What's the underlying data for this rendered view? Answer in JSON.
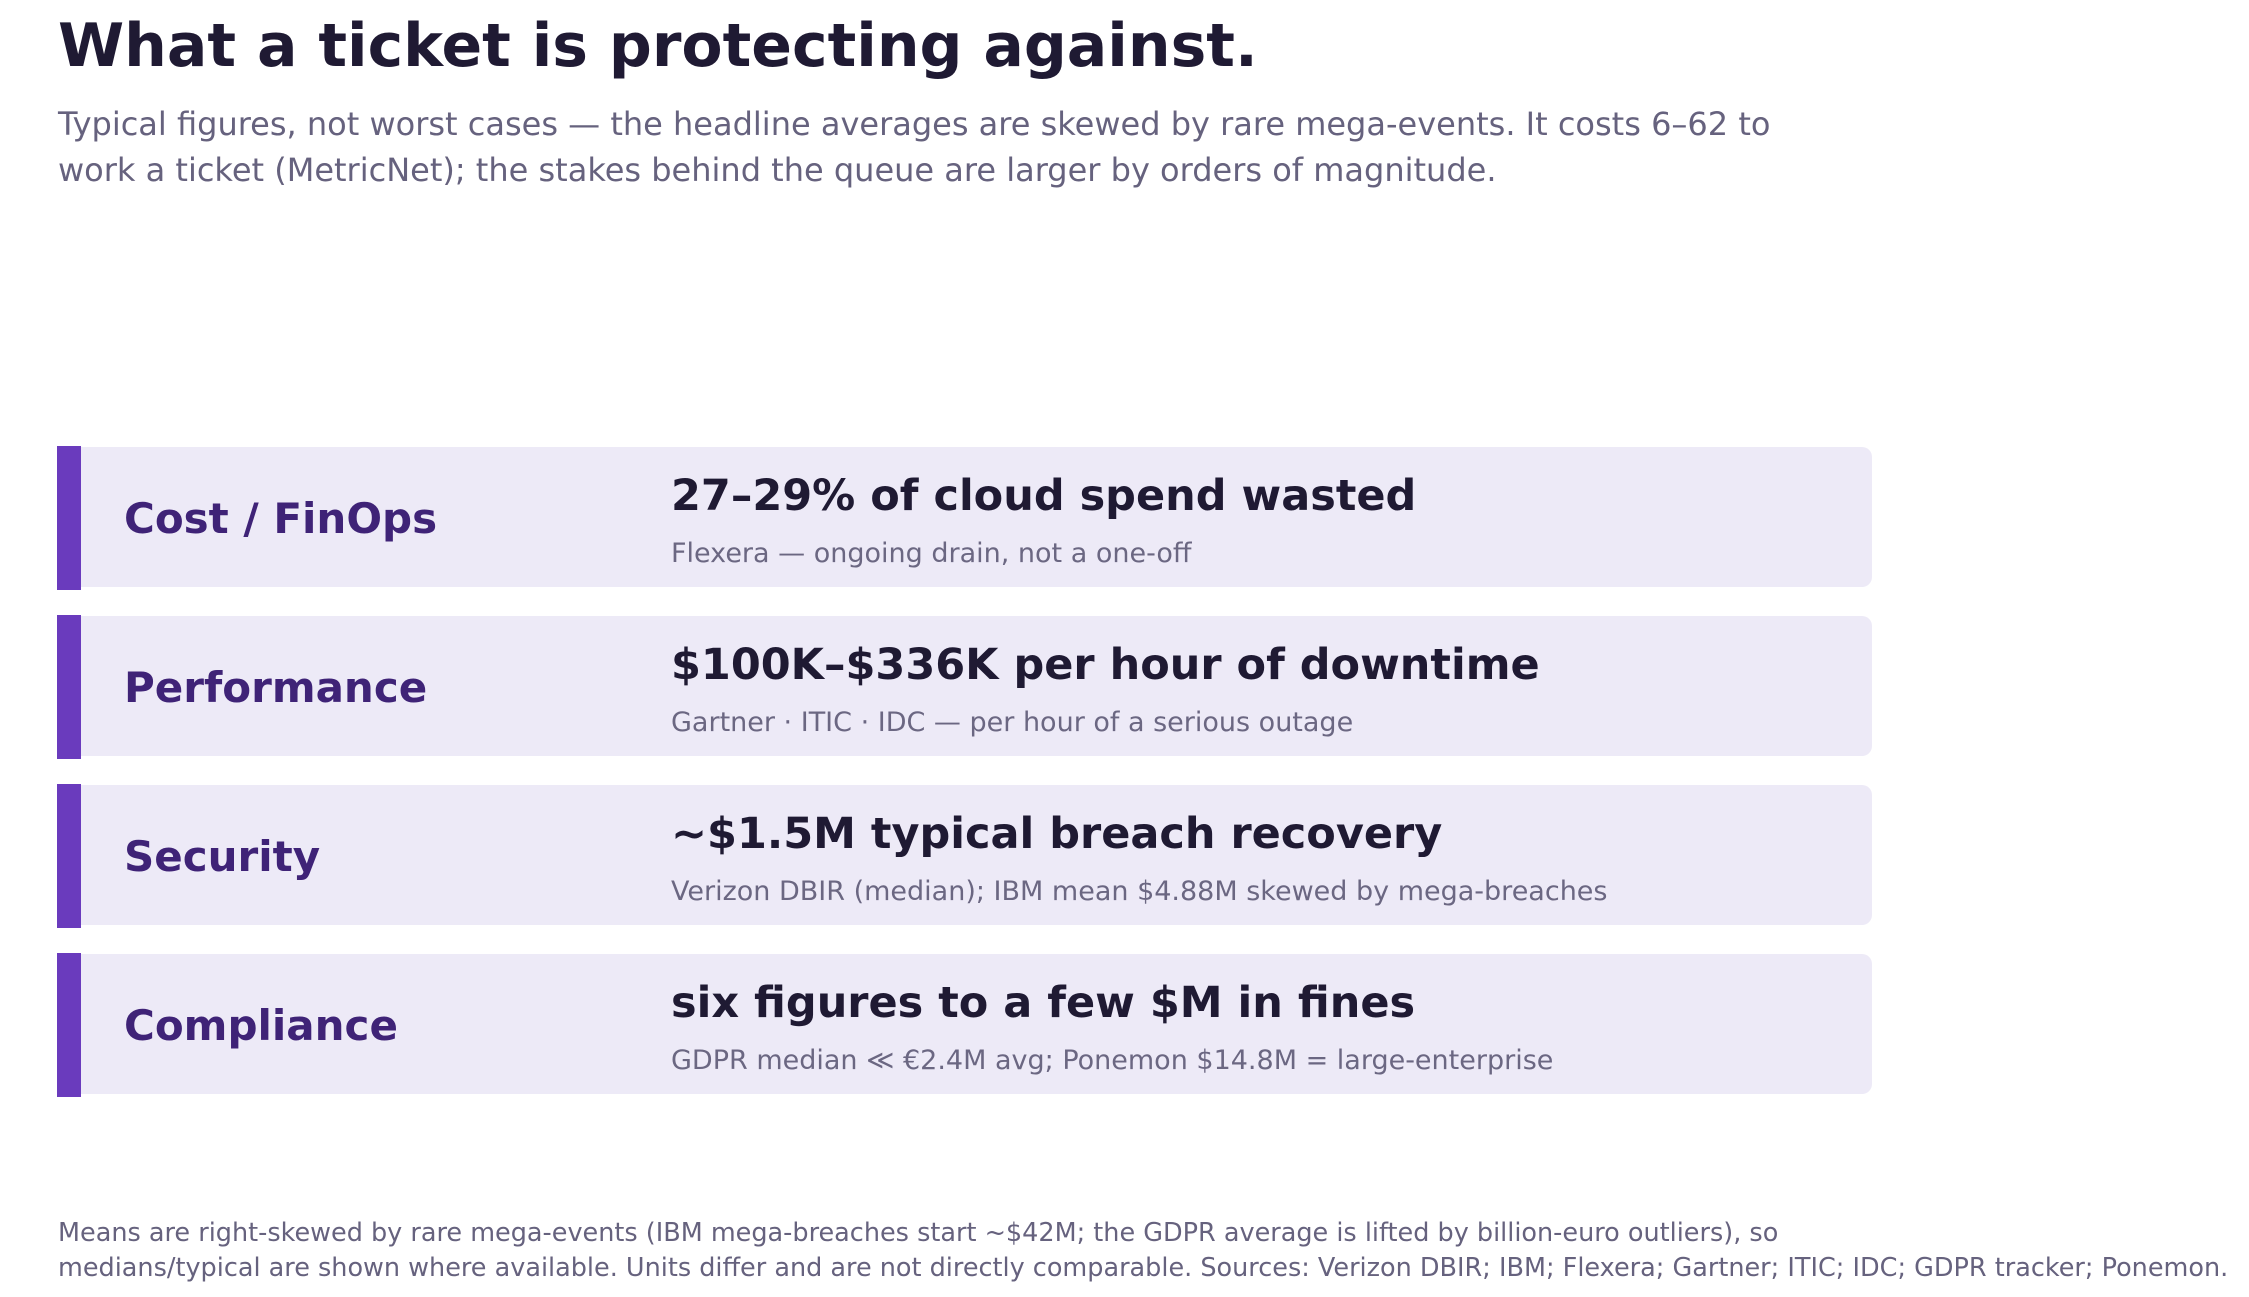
{
  "title": "What a ticket is protecting against.",
  "subtitle": {
    "lines": [
      "Typical figures, not worst cases — the headline averages are skewed by rare mega-events. It costs 6–62 to",
      "work a ticket (MetricNet); the stakes behind the queue are larger by orders of magnitude."
    ]
  },
  "colors": {
    "accent": "#6a3bbd",
    "panel": "#edeaf7",
    "category_text": "#3f2377",
    "headline_text": "#1f1a33",
    "muted_text": "#66627e"
  },
  "rows": [
    {
      "category": "Cost / FinOps",
      "headline": "27–29% of cloud spend wasted",
      "source": "Flexera — ongoing drain, not a one-off"
    },
    {
      "category": "Performance",
      "headline": "$100K–$336K per hour of downtime",
      "source": "Gartner · ITIC · IDC — per hour of a serious outage"
    },
    {
      "category": "Security",
      "headline": "~$1.5M typical breach recovery",
      "source": "Verizon DBIR (median); IBM mean $4.88M skewed by mega-breaches"
    },
    {
      "category": "Compliance",
      "headline": "six figures to a few $M in fines",
      "source": "GDPR median ≪ €2.4M avg; Ponemon $14.8M = large-enterprise"
    }
  ],
  "footnote": {
    "lines": [
      "Means are right-skewed by rare mega-events (IBM mega-breaches start ~$42M; the GDPR average is lifted by billion-euro outliers), so",
      "medians/typical are shown where available. Units differ and are not directly comparable. Sources: Verizon DBIR; IBM; Flexera; Gartner; ITIC; IDC; GDPR tracker; Ponemon."
    ]
  }
}
